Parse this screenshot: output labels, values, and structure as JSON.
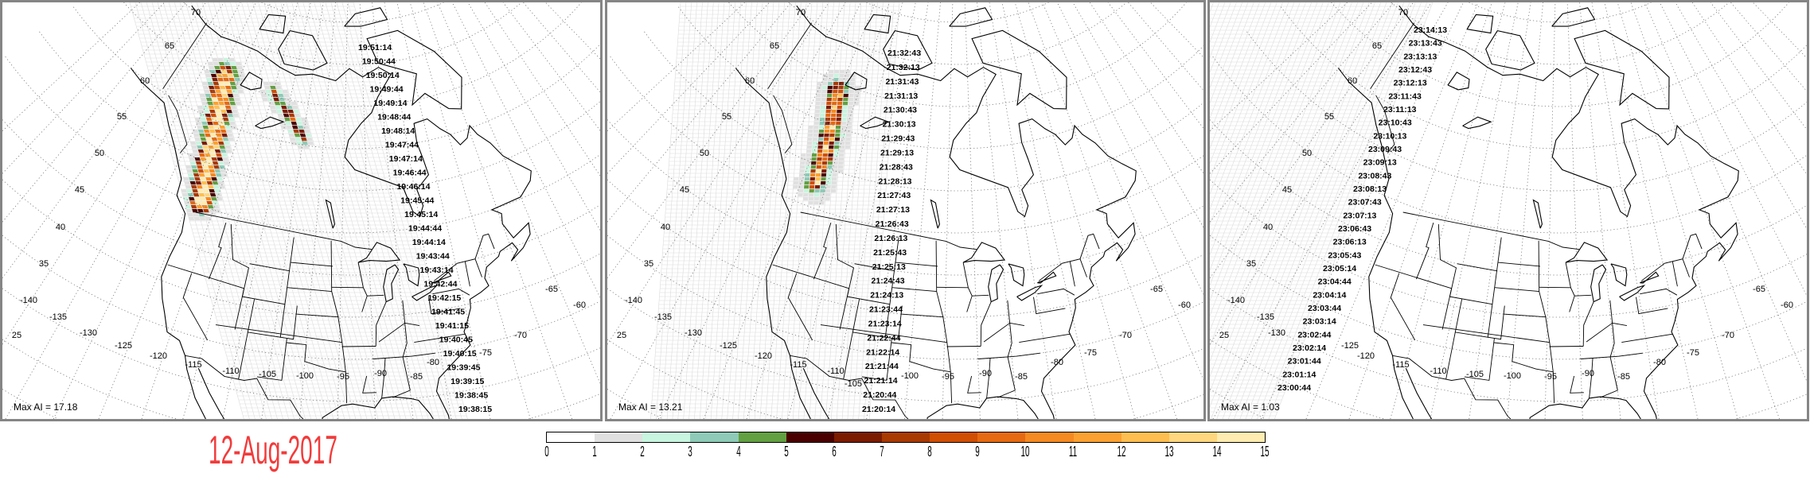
{
  "date_label": "12-Aug-2017",
  "colorbar": {
    "ticks": [
      "0",
      "1",
      "2",
      "3",
      "4",
      "5",
      "6",
      "7",
      "8",
      "9",
      "10",
      "11",
      "12",
      "13",
      "14",
      "15"
    ],
    "colors": [
      "#ffffff",
      "#e0e0e0",
      "#c8f5df",
      "#8ecab7",
      "#63a042",
      "#4a0000",
      "#7b1c00",
      "#a83a02",
      "#d04f02",
      "#e66a12",
      "#f58a22",
      "#fba132",
      "#ffbe50",
      "#ffd77e",
      "#ffecb0"
    ]
  },
  "map": {
    "lat_labels": [
      "70",
      "65",
      "60",
      "55",
      "50",
      "45",
      "40",
      "35",
      "25"
    ],
    "lon_labels": [
      "-140",
      "-135",
      "-130",
      "-125",
      "-120",
      "-115",
      "-110",
      "-105",
      "-100",
      "-95",
      "-90",
      "-85",
      "-80",
      "-75",
      "-70",
      "-65",
      "-60"
    ]
  },
  "panels": [
    {
      "max_ai": "Max AI = 17.18",
      "timestamps": [
        "19:51:14",
        "19:50:44",
        "19:50:14",
        "19:49:44",
        "19:49:14",
        "19:48:44",
        "19:48:14",
        "19:47:44",
        "19:47:14",
        "19:46:44",
        "19:46:14",
        "19:45:44",
        "19:45:14",
        "19:44:44",
        "19:44:14",
        "19:43:44",
        "19:43:14",
        "19:42:44",
        "19:42:15",
        "19:41:45",
        "19:41:15",
        "19:40:45",
        "19:40:15",
        "19:39:45",
        "19:39:15",
        "19:38:45",
        "19:38:15"
      ]
    },
    {
      "max_ai": "Max AI = 13.21",
      "timestamps": [
        "21:32:43",
        "21:32:13",
        "21:31:43",
        "21:31:13",
        "21:30:43",
        "21:30:13",
        "21:29:43",
        "21:29:13",
        "21:28:43",
        "21:28:13",
        "21:27:43",
        "21:27:13",
        "21:26:43",
        "21:26:13",
        "21:25:43",
        "21:25:13",
        "21:24:43",
        "21:24:13",
        "21:23:44",
        "21:23:14",
        "21:22:44",
        "21:22:14",
        "21:21:44",
        "21:21:14",
        "21:20:44",
        "21:20:14"
      ]
    },
    {
      "max_ai": "Max AI = 1.03",
      "timestamps": [
        "23:14:13",
        "23:13:43",
        "23:13:13",
        "23:12:43",
        "23:12:13",
        "23:11:43",
        "23:11:13",
        "23:10:43",
        "23:10:13",
        "23:09:43",
        "23:09:13",
        "23:08:43",
        "23:08:13",
        "23:07:43",
        "23:07:13",
        "23:06:43",
        "23:06:13",
        "23:05:43",
        "23:05:14",
        "23:04:44",
        "23:04:14",
        "23:03:44",
        "23:03:14",
        "23:02:44",
        "23:02:14",
        "23:01:44",
        "23:01:14",
        "23:00:44"
      ]
    }
  ]
}
